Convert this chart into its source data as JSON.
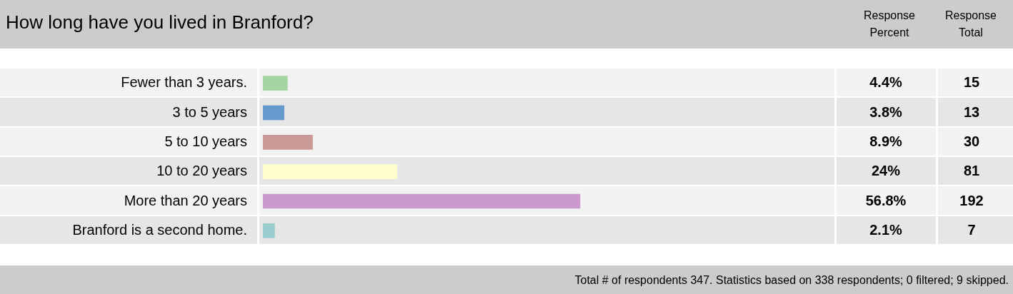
{
  "chart_data": {
    "type": "bar",
    "orientation": "horizontal",
    "title": "How long have you lived in Branford?",
    "categories": [
      "Fewer than 3 years.",
      "3 to 5 years",
      "5 to 10 years",
      "10 to 20 years",
      "More than 20 years",
      "Branford is a second home."
    ],
    "values": [
      4.4,
      3.8,
      8.9,
      24,
      56.8,
      2.1
    ],
    "colors": [
      "#a3d6a3",
      "#6699cc",
      "#cc9999",
      "#ffffcc",
      "#cc99cc",
      "#99cccc"
    ],
    "value_labels": [
      "4.4%",
      "3.8%",
      "8.9%",
      "24%",
      "56.8%",
      "2.1%"
    ],
    "annotations": [
      "Response Percent",
      "Response Total",
      "15",
      "13",
      "30",
      "81",
      "192",
      "7",
      "Total # of respondents 347. Statistics based on 338 respondents; 0 filtered; 9 skipped."
    ],
    "legend": false
  }
}
